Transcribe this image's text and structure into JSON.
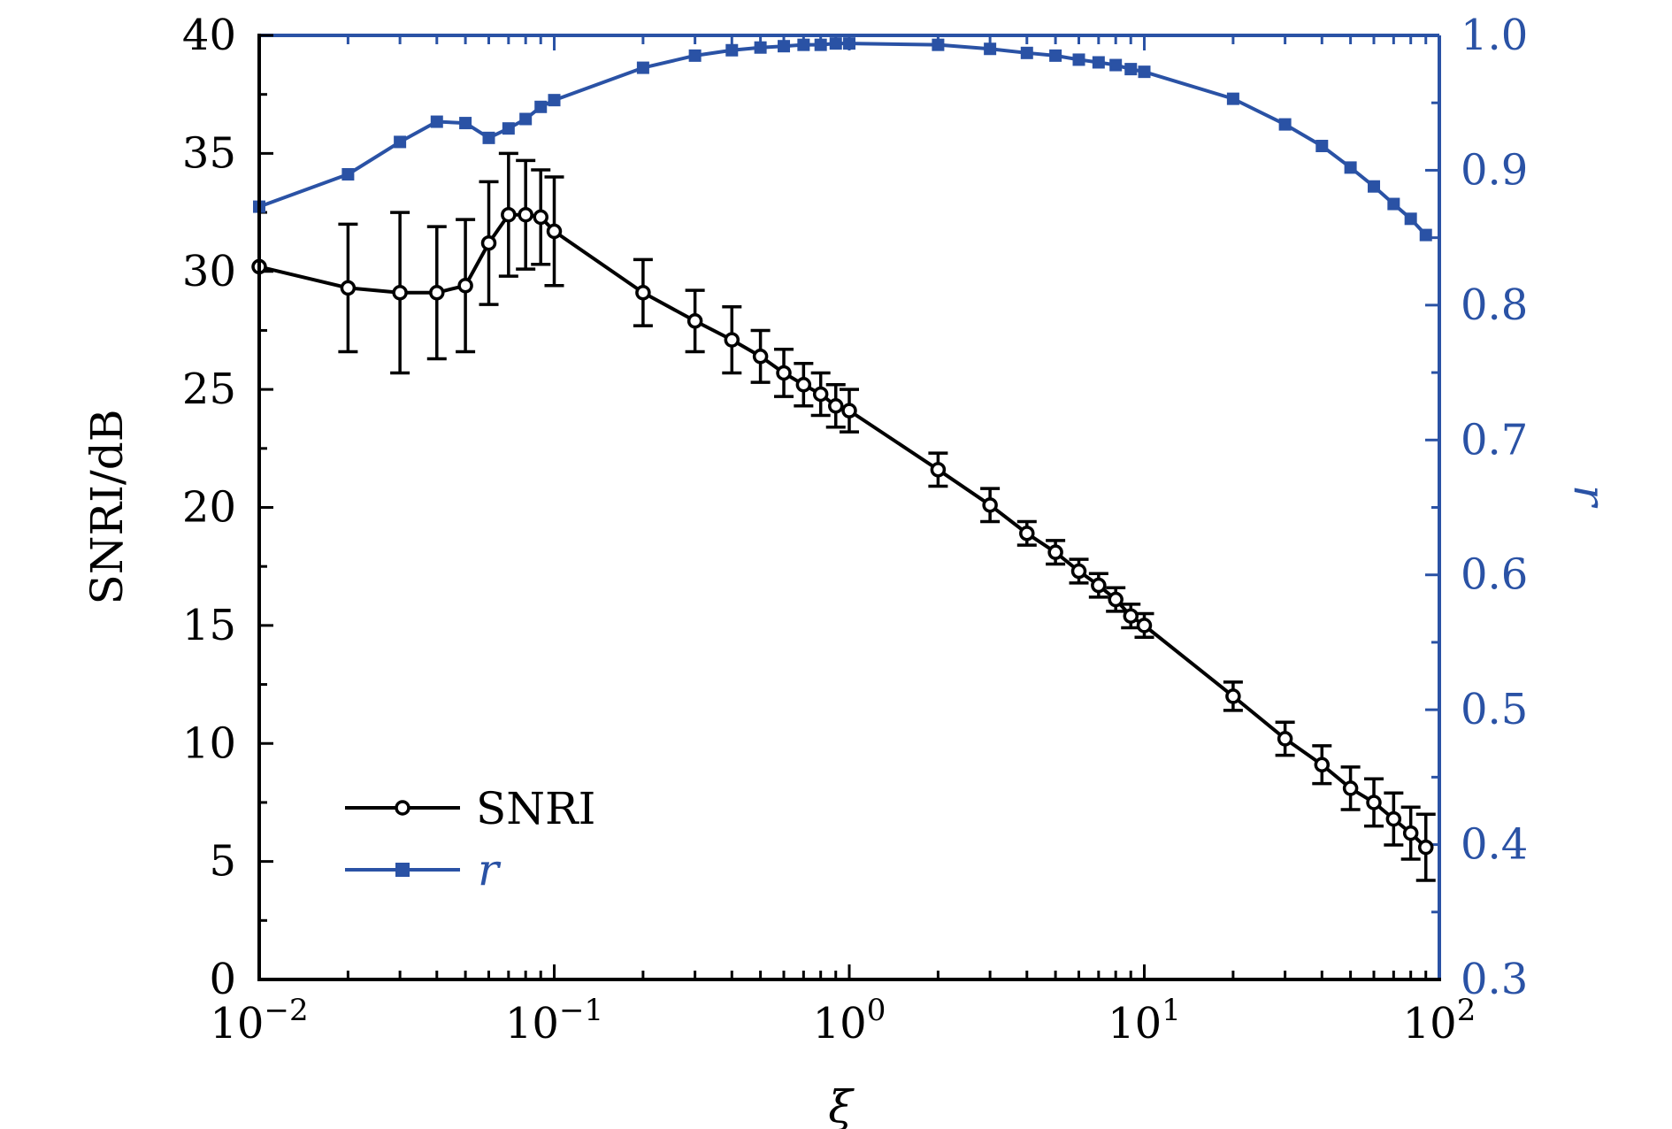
{
  "chart_data": {
    "type": "line",
    "x": [
      0.01,
      0.02,
      0.03,
      0.04,
      0.05,
      0.06,
      0.07,
      0.08,
      0.09,
      0.1,
      0.2,
      0.3,
      0.4,
      0.5,
      0.6,
      0.7,
      0.8,
      0.9,
      1,
      2,
      3,
      4,
      5,
      6,
      7,
      8,
      9,
      10,
      20,
      30,
      40,
      50,
      60,
      70,
      80,
      90
    ],
    "series": [
      {
        "name": "SNRI",
        "axis": "left",
        "color": "#000000",
        "marker": "open-circle",
        "values": [
          30.2,
          29.3,
          29.1,
          29.1,
          29.4,
          31.2,
          32.4,
          32.4,
          32.3,
          31.7,
          29.1,
          27.9,
          27.1,
          26.4,
          25.7,
          25.2,
          24.8,
          24.3,
          24.1,
          21.6,
          20.1,
          18.9,
          18.1,
          17.3,
          16.7,
          16.1,
          15.4,
          15.0,
          12.0,
          10.2,
          9.1,
          8.1,
          7.5,
          6.8,
          6.2,
          5.6
        ],
        "error": [
          0,
          2.7,
          3.4,
          2.8,
          2.8,
          2.6,
          2.6,
          2.3,
          2.0,
          2.3,
          1.4,
          1.3,
          1.4,
          1.1,
          1.0,
          0.9,
          0.9,
          0.9,
          0.9,
          0.7,
          0.7,
          0.5,
          0.5,
          0.5,
          0.5,
          0.5,
          0.5,
          0.5,
          0.6,
          0.7,
          0.8,
          0.9,
          1.0,
          1.1,
          1.1,
          1.4
        ]
      },
      {
        "name": "r",
        "axis": "right",
        "color": "#2a52a5",
        "marker": "filled-square",
        "values": [
          0.873,
          0.897,
          0.921,
          0.936,
          0.935,
          0.924,
          0.931,
          0.938,
          0.947,
          0.952,
          0.976,
          0.985,
          0.989,
          0.991,
          0.992,
          0.993,
          0.993,
          0.994,
          0.994,
          0.993,
          0.99,
          0.987,
          0.985,
          0.982,
          0.98,
          0.978,
          0.975,
          0.973,
          0.953,
          0.934,
          0.918,
          0.902,
          0.888,
          0.875,
          0.864,
          0.852
        ]
      }
    ],
    "xscale": "log",
    "xlim": [
      0.01,
      100
    ],
    "xticks": [
      {
        "value": 0.01,
        "base": "10",
        "exp": "−2"
      },
      {
        "value": 0.1,
        "base": "10",
        "exp": "−1"
      },
      {
        "value": 1,
        "base": "10",
        "exp": "0"
      },
      {
        "value": 10,
        "base": "10",
        "exp": "1"
      },
      {
        "value": 100,
        "base": "10",
        "exp": "2"
      }
    ],
    "ylim": [
      0,
      40
    ],
    "yticks": [
      "0",
      "5",
      "10",
      "15",
      "20",
      "25",
      "30",
      "35",
      "40"
    ],
    "y2lim": [
      0.3,
      1.0
    ],
    "y2ticks": [
      "0.3",
      "0.4",
      "0.5",
      "0.6",
      "0.7",
      "0.8",
      "0.9",
      "1.0"
    ],
    "xlabel": "ξ",
    "ylabel": "SNRI/dB",
    "y2label": "r",
    "y2color": "#2a52a5",
    "legend": {
      "placement": "lower-left",
      "entries": [
        "SNRI",
        "r"
      ]
    },
    "grid": false
  }
}
